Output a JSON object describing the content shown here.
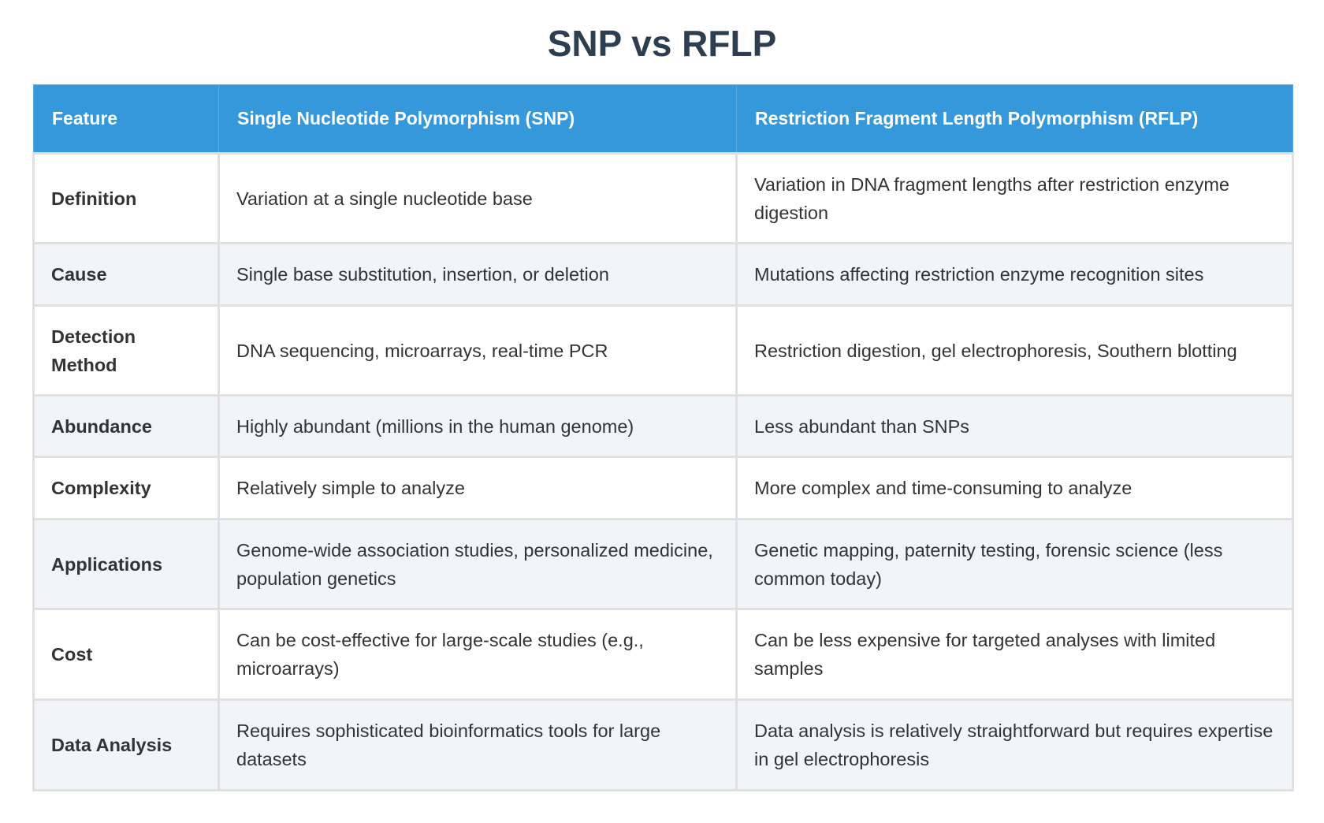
{
  "title": "SNP vs RFLP",
  "headers": [
    "Feature",
    "Single Nucleotide Polymorphism (SNP)",
    "Restriction Fragment Length Polymorphism (RFLP)"
  ],
  "rows": [
    {
      "feature": "Definition",
      "snp": "Variation at a single nucleotide base",
      "rflp": "Variation in DNA fragment lengths after restriction enzyme digestion"
    },
    {
      "feature": "Cause",
      "snp": "Single base substitution, insertion, or deletion",
      "rflp": "Mutations affecting restriction enzyme recognition sites"
    },
    {
      "feature": "Detection Method",
      "snp": "DNA sequencing, microarrays, real-time PCR",
      "rflp": "Restriction digestion, gel electrophoresis, Southern blotting"
    },
    {
      "feature": "Abundance",
      "snp": "Highly abundant (millions in the human genome)",
      "rflp": "Less abundant than SNPs"
    },
    {
      "feature": "Complexity",
      "snp": "Relatively simple to analyze",
      "rflp": "More complex and time-consuming to analyze"
    },
    {
      "feature": "Applications",
      "snp": "Genome-wide association studies, personalized medicine, population genetics",
      "rflp": "Genetic mapping, paternity testing, forensic science (less common today)"
    },
    {
      "feature": "Cost",
      "snp": "Can be cost-effective for large-scale studies (e.g., microarrays)",
      "rflp": "Can be less expensive for targeted analyses with limited samples"
    },
    {
      "feature": "Data Analysis",
      "snp": "Requires sophisticated bioinformatics tools for large datasets",
      "rflp": "Data analysis is relatively straightforward but requires expertise in gel electrophoresis"
    }
  ],
  "colors": {
    "header_bg": "#3498db",
    "title": "#2c3e50",
    "alt_row": "#f1f4f9"
  }
}
